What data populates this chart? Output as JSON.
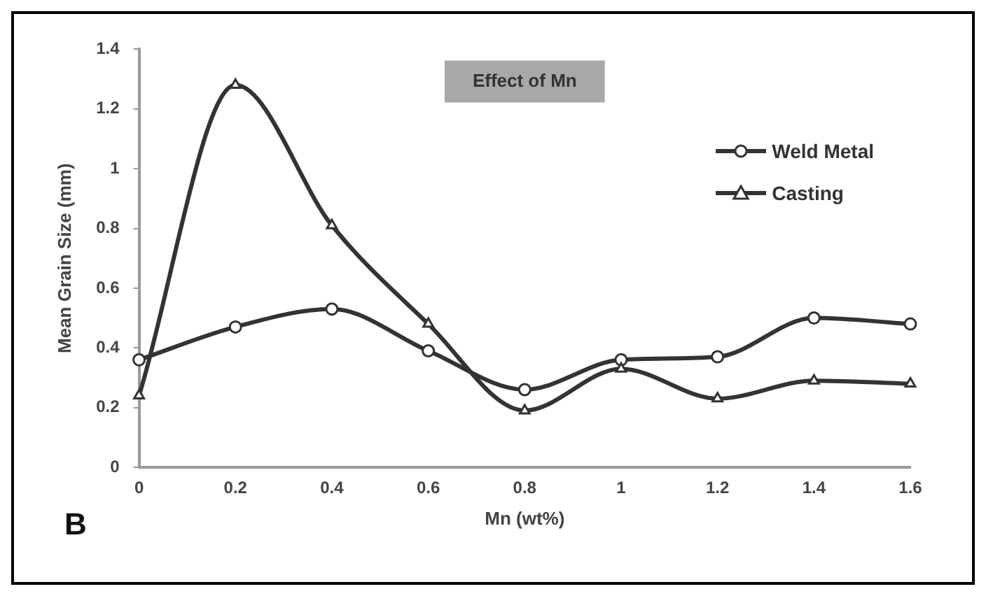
{
  "chart_data": {
    "type": "line",
    "xlabel": "Mn (wt%)",
    "ylabel": "Mean Grain Size (mm)",
    "x": [
      0,
      0.2,
      0.4,
      0.6,
      0.8,
      1,
      1.2,
      1.4,
      1.6
    ],
    "series": [
      {
        "name": "Weld Metal",
        "color": "#333333",
        "marker": "circle",
        "values": [
          0.36,
          0.47,
          0.53,
          0.39,
          0.26,
          0.36,
          0.37,
          0.5,
          0.48
        ]
      },
      {
        "name": "Casting",
        "color": "#333333",
        "marker": "triangle",
        "values": [
          0.24,
          1.28,
          0.81,
          0.48,
          0.19,
          0.33,
          0.23,
          0.29,
          0.28
        ]
      }
    ],
    "xlim": [
      0,
      1.6
    ],
    "xticks": [
      0,
      0.2,
      0.4,
      0.6,
      0.8,
      1,
      1.2,
      1.4,
      1.6
    ],
    "ylim": [
      0,
      1.4
    ],
    "yticks": [
      0,
      0.2,
      0.4,
      0.6,
      0.8,
      1,
      1.2,
      1.4
    ],
    "grid": false,
    "legend": "top right",
    "line_style": "solid",
    "annotations": [
      "Effect of Mn",
      "B"
    ]
  }
}
